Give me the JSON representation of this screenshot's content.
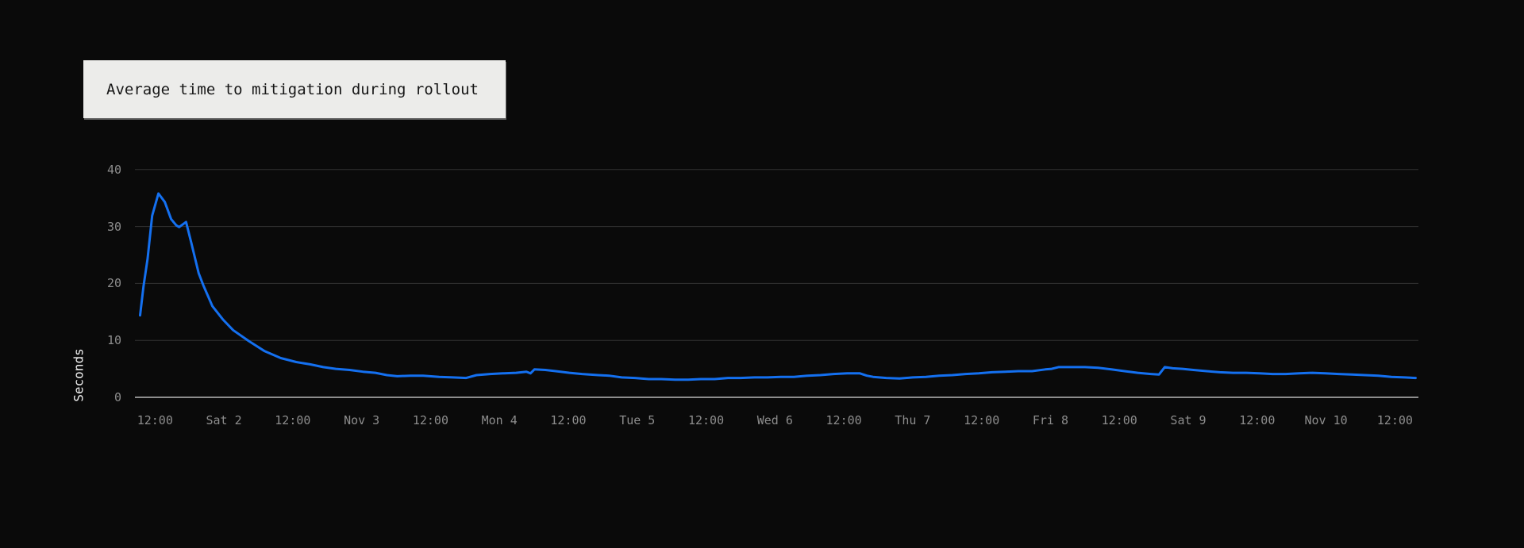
{
  "chart_data": {
    "type": "line",
    "title": "Average time to mitigation during rollout",
    "xlabel": "",
    "ylabel": "Seconds",
    "ylim": [
      0,
      40
    ],
    "yticks": [
      0,
      10,
      20,
      30,
      40
    ],
    "grid": "horizontal",
    "legend": "none",
    "x_unit": "hours since Nov 1 00:00",
    "xlim": [
      8.5,
      232.1
    ],
    "xticks": [
      {
        "t": 12,
        "label": "12:00"
      },
      {
        "t": 24,
        "label": "Sat 2"
      },
      {
        "t": 36,
        "label": "12:00"
      },
      {
        "t": 48,
        "label": "Nov 3"
      },
      {
        "t": 60,
        "label": "12:00"
      },
      {
        "t": 72,
        "label": "Mon 4"
      },
      {
        "t": 84,
        "label": "12:00"
      },
      {
        "t": 96,
        "label": "Tue 5"
      },
      {
        "t": 108,
        "label": "12:00"
      },
      {
        "t": 120,
        "label": "Wed 6"
      },
      {
        "t": 132,
        "label": "12:00"
      },
      {
        "t": 144,
        "label": "Thu 7"
      },
      {
        "t": 156,
        "label": "12:00"
      },
      {
        "t": 168,
        "label": "Fri 8"
      },
      {
        "t": 180,
        "label": "12:00"
      },
      {
        "t": 192,
        "label": "Sat 9"
      },
      {
        "t": 204,
        "label": "12:00"
      },
      {
        "t": 216,
        "label": "Nov 10"
      },
      {
        "t": 228,
        "label": "12:00"
      }
    ],
    "series": [
      {
        "name": "Average time to mitigation",
        "color": "#1470f0",
        "points": [
          [
            9.4,
            14.4
          ],
          [
            10.0,
            19.5
          ],
          [
            10.7,
            24.3
          ],
          [
            11.5,
            31.9
          ],
          [
            12.6,
            35.8
          ],
          [
            13.7,
            34.3
          ],
          [
            14.8,
            31.3
          ],
          [
            15.7,
            30.2
          ],
          [
            16.2,
            29.9
          ],
          [
            17.4,
            30.8
          ],
          [
            18.3,
            27.2
          ],
          [
            19.6,
            21.8
          ],
          [
            20.4,
            19.7
          ],
          [
            22.0,
            16.0
          ],
          [
            23.8,
            13.7
          ],
          [
            25.6,
            11.8
          ],
          [
            28.3,
            9.9
          ],
          [
            31.1,
            8.1
          ],
          [
            33.9,
            6.9
          ],
          [
            36.6,
            6.2
          ],
          [
            39.0,
            5.8
          ],
          [
            41.3,
            5.3
          ],
          [
            43.5,
            5.0
          ],
          [
            45.9,
            4.8
          ],
          [
            48.2,
            4.5
          ],
          [
            50.4,
            4.3
          ],
          [
            52.4,
            3.9
          ],
          [
            54.2,
            3.7
          ],
          [
            56.5,
            3.8
          ],
          [
            58.7,
            3.8
          ],
          [
            61.5,
            3.6
          ],
          [
            63.9,
            3.5
          ],
          [
            66.2,
            3.4
          ],
          [
            68.0,
            3.9
          ],
          [
            70.4,
            4.1
          ],
          [
            72.6,
            4.2
          ],
          [
            74.9,
            4.3
          ],
          [
            76.7,
            4.5
          ],
          [
            77.4,
            4.2
          ],
          [
            78.1,
            4.9
          ],
          [
            80.0,
            4.8
          ],
          [
            81.8,
            4.6
          ],
          [
            84.2,
            4.3
          ],
          [
            86.4,
            4.1
          ],
          [
            89.2,
            3.9
          ],
          [
            91.1,
            3.8
          ],
          [
            93.3,
            3.5
          ],
          [
            95.6,
            3.4
          ],
          [
            98.0,
            3.2
          ],
          [
            100.2,
            3.2
          ],
          [
            102.6,
            3.1
          ],
          [
            104.9,
            3.1
          ],
          [
            107.1,
            3.2
          ],
          [
            109.5,
            3.2
          ],
          [
            111.8,
            3.4
          ],
          [
            114.0,
            3.4
          ],
          [
            116.4,
            3.5
          ],
          [
            118.7,
            3.5
          ],
          [
            121.0,
            3.6
          ],
          [
            123.3,
            3.6
          ],
          [
            125.7,
            3.8
          ],
          [
            127.9,
            3.9
          ],
          [
            130.2,
            4.1
          ],
          [
            132.6,
            4.2
          ],
          [
            134.8,
            4.2
          ],
          [
            136.0,
            3.8
          ],
          [
            137.1,
            3.6
          ],
          [
            139.4,
            3.4
          ],
          [
            141.7,
            3.3
          ],
          [
            144.0,
            3.5
          ],
          [
            146.3,
            3.6
          ],
          [
            148.6,
            3.8
          ],
          [
            150.9,
            3.9
          ],
          [
            153.2,
            4.1
          ],
          [
            155.5,
            4.2
          ],
          [
            157.8,
            4.4
          ],
          [
            160.2,
            4.5
          ],
          [
            162.4,
            4.6
          ],
          [
            164.8,
            4.6
          ],
          [
            167.1,
            4.9
          ],
          [
            168.2,
            5.0
          ],
          [
            169.4,
            5.3
          ],
          [
            171.7,
            5.3
          ],
          [
            174.0,
            5.3
          ],
          [
            176.3,
            5.2
          ],
          [
            178.6,
            4.9
          ],
          [
            180.9,
            4.6
          ],
          [
            183.2,
            4.3
          ],
          [
            185.5,
            4.1
          ],
          [
            186.9,
            4.0
          ],
          [
            187.9,
            5.3
          ],
          [
            189.3,
            5.1
          ],
          [
            191.0,
            5.0
          ],
          [
            192.9,
            4.8
          ],
          [
            195.2,
            4.6
          ],
          [
            197.5,
            4.4
          ],
          [
            199.8,
            4.3
          ],
          [
            202.1,
            4.3
          ],
          [
            204.4,
            4.2
          ],
          [
            206.7,
            4.1
          ],
          [
            209.0,
            4.1
          ],
          [
            211.3,
            4.2
          ],
          [
            213.6,
            4.3
          ],
          [
            215.9,
            4.2
          ],
          [
            218.2,
            4.1
          ],
          [
            220.5,
            4.0
          ],
          [
            222.8,
            3.9
          ],
          [
            225.1,
            3.8
          ],
          [
            227.4,
            3.6
          ],
          [
            229.7,
            3.5
          ],
          [
            231.6,
            3.4
          ]
        ]
      }
    ]
  },
  "colors": {
    "background": "#0a0a0a",
    "title_box_bg": "#ececea",
    "title_text": "#161616",
    "line": "#1470f0",
    "grid": "#333333",
    "axis": "#8d8d8d",
    "tick_label": "#8d8d8d",
    "axis_title_text": "#f2f2f2"
  }
}
